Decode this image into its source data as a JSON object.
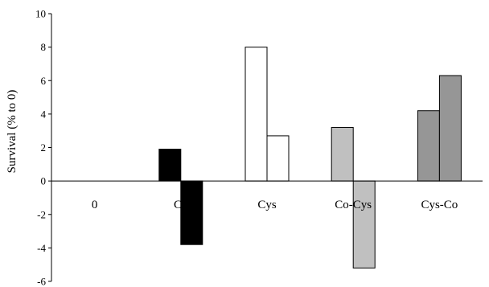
{
  "chart_data": {
    "type": "bar",
    "title": "",
    "xlabel": "",
    "ylabel": "Survival (% to 0)",
    "ylim": [
      -6,
      10
    ],
    "yticks": [
      -6,
      -4,
      -2,
      0,
      2,
      4,
      6,
      8,
      10
    ],
    "grid": false,
    "legend": "none",
    "categories": [
      "0",
      "Co",
      "Cys",
      "Co-Cys",
      "Cys-Co"
    ],
    "bars": [
      {
        "category": "Co",
        "values": [
          1.9,
          -3.8
        ],
        "color": "#000000"
      },
      {
        "category": "Cys",
        "values": [
          8.0,
          2.7
        ],
        "color": "#ffffff"
      },
      {
        "category": "Co-Cys",
        "values": [
          3.2,
          -5.2
        ],
        "color": "#c0c0c0"
      },
      {
        "category": "Cys-Co",
        "values": [
          4.2,
          6.3
        ],
        "color": "#969696"
      }
    ]
  }
}
